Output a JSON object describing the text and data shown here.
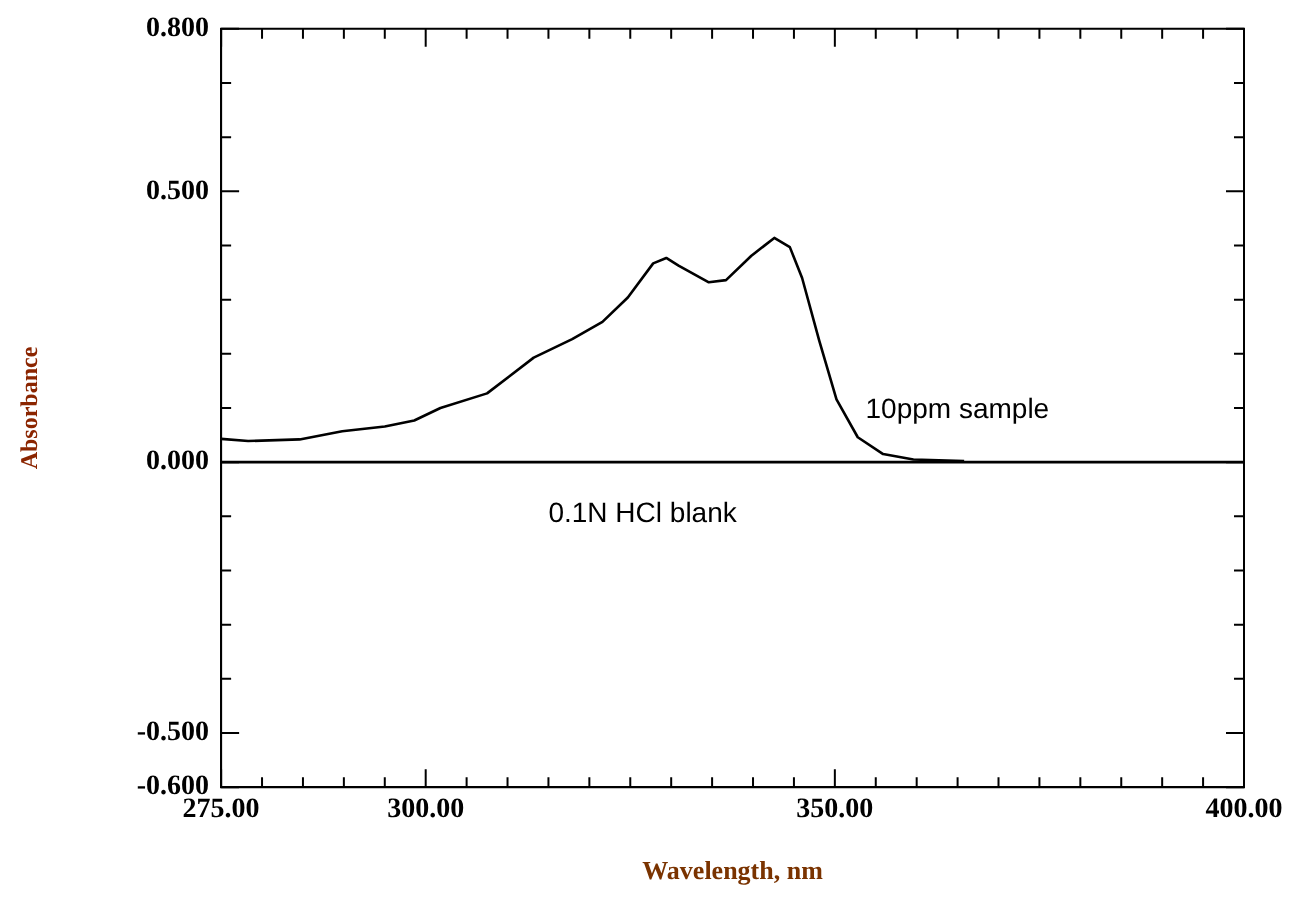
{
  "chart_data": {
    "type": "line",
    "xlabel": "Wavelength, nm",
    "ylabel": "Absorbance",
    "xlim": [
      275,
      400
    ],
    "ylim": [
      -0.6,
      0.8
    ],
    "xticks": [
      {
        "value": 275,
        "label": "275.00"
      },
      {
        "value": 280,
        "label": null
      },
      {
        "value": 285,
        "label": null
      },
      {
        "value": 290,
        "label": null
      },
      {
        "value": 295,
        "label": null
      },
      {
        "value": 300,
        "label": "300.00"
      },
      {
        "value": 305,
        "label": null
      },
      {
        "value": 310,
        "label": null
      },
      {
        "value": 315,
        "label": null
      },
      {
        "value": 320,
        "label": null
      },
      {
        "value": 325,
        "label": null
      },
      {
        "value": 330,
        "label": null
      },
      {
        "value": 335,
        "label": null
      },
      {
        "value": 340,
        "label": null
      },
      {
        "value": 345,
        "label": null
      },
      {
        "value": 350,
        "label": "350.00"
      },
      {
        "value": 355,
        "label": null
      },
      {
        "value": 360,
        "label": null
      },
      {
        "value": 365,
        "label": null
      },
      {
        "value": 370,
        "label": null
      },
      {
        "value": 375,
        "label": null
      },
      {
        "value": 380,
        "label": null
      },
      {
        "value": 385,
        "label": null
      },
      {
        "value": 390,
        "label": null
      },
      {
        "value": 395,
        "label": null
      },
      {
        "value": 400,
        "label": "400.00"
      }
    ],
    "yticks": [
      {
        "value": -0.6,
        "label": "-0.600"
      },
      {
        "value": -0.5,
        "label": "-0.500"
      },
      {
        "value": -0.4,
        "label": null
      },
      {
        "value": -0.3,
        "label": null
      },
      {
        "value": -0.2,
        "label": null
      },
      {
        "value": -0.1,
        "label": null
      },
      {
        "value": 0,
        "label": "0.000"
      },
      {
        "value": 0.1,
        "label": null
      },
      {
        "value": 0.2,
        "label": null
      },
      {
        "value": 0.3,
        "label": null
      },
      {
        "value": 0.4,
        "label": null
      },
      {
        "value": 0.5,
        "label": "0.500"
      },
      {
        "value": 0.6,
        "label": null
      },
      {
        "value": 0.7,
        "label": null
      },
      {
        "value": 0.8,
        "label": "0.800"
      }
    ],
    "grid": false,
    "legend": false,
    "marker": "none",
    "line_style": "solid",
    "series": [
      {
        "name": "10ppm sample",
        "color": "#000000",
        "x": [
          275,
          278.3,
          284.6,
          289.8,
          295,
          298.6,
          301.8,
          307.5,
          313.2,
          317.9,
          321.6,
          324.7,
          327.8,
          329.4,
          330.9,
          334.6,
          336.7,
          339.8,
          342.6,
          344.5,
          346,
          348.1,
          350.2,
          352.8,
          355.9,
          359.6,
          365.8
        ],
        "values": [
          0.043,
          0.039,
          0.042,
          0.057,
          0.066,
          0.077,
          0.1,
          0.127,
          0.193,
          0.227,
          0.259,
          0.304,
          0.367,
          0.377,
          0.363,
          0.332,
          0.336,
          0.381,
          0.414,
          0.397,
          0.34,
          0.224,
          0.116,
          0.046,
          0.015,
          0.005,
          0.002
        ]
      },
      {
        "name": "0.1N HCl blank",
        "color": "#000000",
        "x": [
          275,
          400
        ],
        "values": [
          0,
          0
        ]
      }
    ]
  }
}
